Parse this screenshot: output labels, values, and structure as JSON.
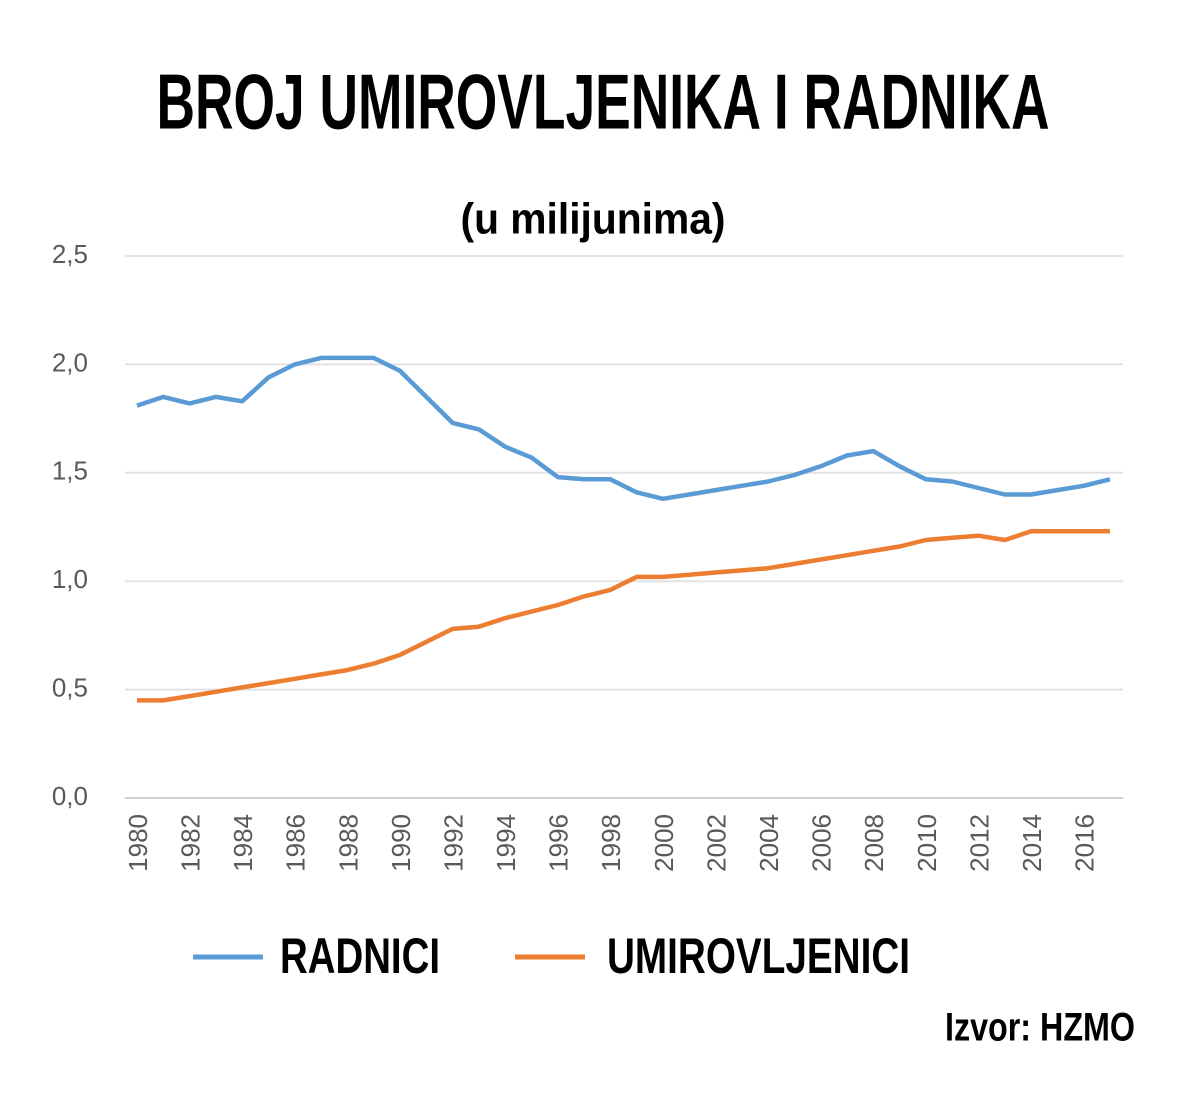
{
  "chart_data": {
    "type": "line",
    "title": "BROJ UMIROVLJENIKA I RADNIKA",
    "subtitle": "(u milijunima)",
    "source": "Izvor: HZMO",
    "x": [
      1980,
      1981,
      1982,
      1983,
      1984,
      1985,
      1986,
      1987,
      1988,
      1989,
      1990,
      1991,
      1992,
      1993,
      1994,
      1995,
      1996,
      1997,
      1998,
      1999,
      2000,
      2001,
      2002,
      2003,
      2004,
      2005,
      2006,
      2007,
      2008,
      2009,
      2010,
      2011,
      2012,
      2013,
      2014,
      2015,
      2016,
      2017
    ],
    "series": [
      {
        "name": "RADNICI",
        "color": "#5b9bd5",
        "values": [
          1.81,
          1.85,
          1.82,
          1.85,
          1.83,
          1.94,
          2.0,
          2.03,
          2.03,
          2.03,
          1.97,
          1.85,
          1.73,
          1.7,
          1.62,
          1.57,
          1.48,
          1.47,
          1.47,
          1.41,
          1.38,
          1.4,
          1.42,
          1.44,
          1.46,
          1.49,
          1.53,
          1.58,
          1.6,
          1.53,
          1.47,
          1.46,
          1.43,
          1.4,
          1.4,
          1.42,
          1.44,
          1.47
        ]
      },
      {
        "name": "UMIROVLJENICI",
        "color": "#ed7d31",
        "values": [
          0.45,
          0.45,
          0.47,
          0.49,
          0.51,
          0.53,
          0.55,
          0.57,
          0.59,
          0.62,
          0.66,
          0.72,
          0.78,
          0.79,
          0.83,
          0.86,
          0.89,
          0.93,
          0.96,
          1.02,
          1.02,
          1.03,
          1.04,
          1.05,
          1.06,
          1.08,
          1.1,
          1.12,
          1.14,
          1.16,
          1.19,
          1.2,
          1.21,
          1.19,
          1.23,
          1.23,
          1.23,
          1.23
        ]
      }
    ],
    "xlim": [
      1980,
      2017
    ],
    "xticks": [
      1980,
      1982,
      1984,
      1986,
      1988,
      1990,
      1992,
      1994,
      1996,
      1998,
      2000,
      2002,
      2004,
      2006,
      2008,
      2010,
      2012,
      2014,
      2016
    ],
    "ylim": [
      0,
      2.5
    ],
    "yticks": [
      {
        "value": 0,
        "label": "0,0"
      },
      {
        "value": 0.5,
        "label": "0,5"
      },
      {
        "value": 1,
        "label": "1,0"
      },
      {
        "value": 1.5,
        "label": "1,5"
      },
      {
        "value": 2,
        "label": "2,0"
      },
      {
        "value": 2.5,
        "label": "2,5"
      }
    ],
    "grid": true,
    "legend": "bottom"
  }
}
